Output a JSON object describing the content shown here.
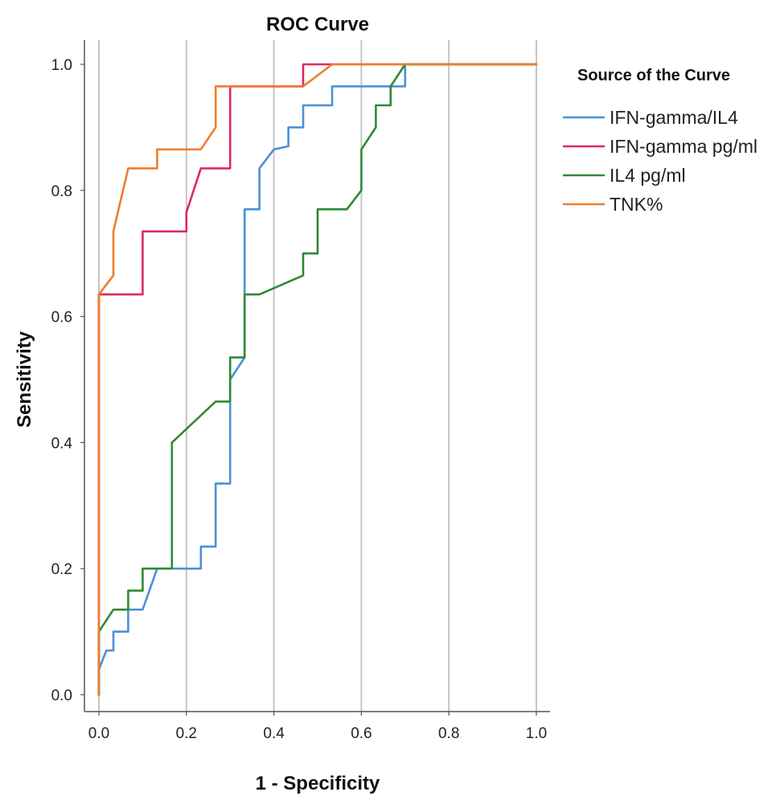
{
  "chart_data": {
    "type": "line",
    "title": "ROC Curve",
    "xlabel": "1 - Specificity",
    "ylabel": "Sensitivity",
    "xlim": [
      0,
      1
    ],
    "ylim": [
      0,
      1
    ],
    "xticks": [
      "0.0",
      "0.2",
      "0.4",
      "0.6",
      "0.8",
      "1.0"
    ],
    "yticks": [
      "0.0",
      "0.2",
      "0.4",
      "0.6",
      "0.8",
      "1.0"
    ],
    "grid": "vertical",
    "legend": {
      "title": "Source of the Curve",
      "position": "right"
    },
    "series": [
      {
        "name": "IFN-gamma/IL4",
        "color": "#4a90d9",
        "points": [
          [
            0,
            0
          ],
          [
            0,
            0.04
          ],
          [
            0.017,
            0.07
          ],
          [
            0.033,
            0.07
          ],
          [
            0.033,
            0.1
          ],
          [
            0.067,
            0.1
          ],
          [
            0.067,
            0.135
          ],
          [
            0.1,
            0.135
          ],
          [
            0.133,
            0.2
          ],
          [
            0.233,
            0.2
          ],
          [
            0.233,
            0.235
          ],
          [
            0.267,
            0.235
          ],
          [
            0.267,
            0.335
          ],
          [
            0.3,
            0.335
          ],
          [
            0.3,
            0.5
          ],
          [
            0.333,
            0.535
          ],
          [
            0.333,
            0.77
          ],
          [
            0.367,
            0.77
          ],
          [
            0.367,
            0.835
          ],
          [
            0.4,
            0.865
          ],
          [
            0.433,
            0.87
          ],
          [
            0.433,
            0.9
          ],
          [
            0.467,
            0.9
          ],
          [
            0.467,
            0.935
          ],
          [
            0.533,
            0.935
          ],
          [
            0.533,
            0.965
          ],
          [
            0.7,
            0.965
          ],
          [
            0.7,
            1.0
          ],
          [
            1.0,
            1.0
          ]
        ]
      },
      {
        "name": "IFN-gamma pg/ml",
        "color": "#dd2a5b",
        "points": [
          [
            0,
            0
          ],
          [
            0,
            0.635
          ],
          [
            0.1,
            0.635
          ],
          [
            0.1,
            0.735
          ],
          [
            0.2,
            0.735
          ],
          [
            0.2,
            0.765
          ],
          [
            0.233,
            0.835
          ],
          [
            0.3,
            0.835
          ],
          [
            0.3,
            0.965
          ],
          [
            0.467,
            0.965
          ],
          [
            0.467,
            1.0
          ],
          [
            1.0,
            1.0
          ]
        ]
      },
      {
        "name": "IL4 pg/ml",
        "color": "#2e8a33",
        "points": [
          [
            0,
            0
          ],
          [
            0,
            0.1
          ],
          [
            0.033,
            0.135
          ],
          [
            0.067,
            0.135
          ],
          [
            0.067,
            0.165
          ],
          [
            0.1,
            0.165
          ],
          [
            0.1,
            0.2
          ],
          [
            0.167,
            0.2
          ],
          [
            0.167,
            0.4
          ],
          [
            0.267,
            0.465
          ],
          [
            0.3,
            0.465
          ],
          [
            0.3,
            0.535
          ],
          [
            0.333,
            0.535
          ],
          [
            0.333,
            0.635
          ],
          [
            0.367,
            0.635
          ],
          [
            0.467,
            0.665
          ],
          [
            0.467,
            0.7
          ],
          [
            0.5,
            0.7
          ],
          [
            0.5,
            0.77
          ],
          [
            0.567,
            0.77
          ],
          [
            0.6,
            0.8
          ],
          [
            0.6,
            0.865
          ],
          [
            0.633,
            0.9
          ],
          [
            0.633,
            0.935
          ],
          [
            0.667,
            0.935
          ],
          [
            0.667,
            0.965
          ],
          [
            0.7,
            1.0
          ],
          [
            1.0,
            1.0
          ]
        ]
      },
      {
        "name": "TNK%",
        "color": "#f07d2a",
        "points": [
          [
            0,
            0
          ],
          [
            0,
            0.635
          ],
          [
            0.033,
            0.665
          ],
          [
            0.033,
            0.735
          ],
          [
            0.067,
            0.835
          ],
          [
            0.133,
            0.835
          ],
          [
            0.133,
            0.865
          ],
          [
            0.233,
            0.865
          ],
          [
            0.267,
            0.9
          ],
          [
            0.267,
            0.965
          ],
          [
            0.467,
            0.965
          ],
          [
            0.533,
            1.0
          ],
          [
            1.0,
            1.0
          ]
        ]
      }
    ]
  }
}
